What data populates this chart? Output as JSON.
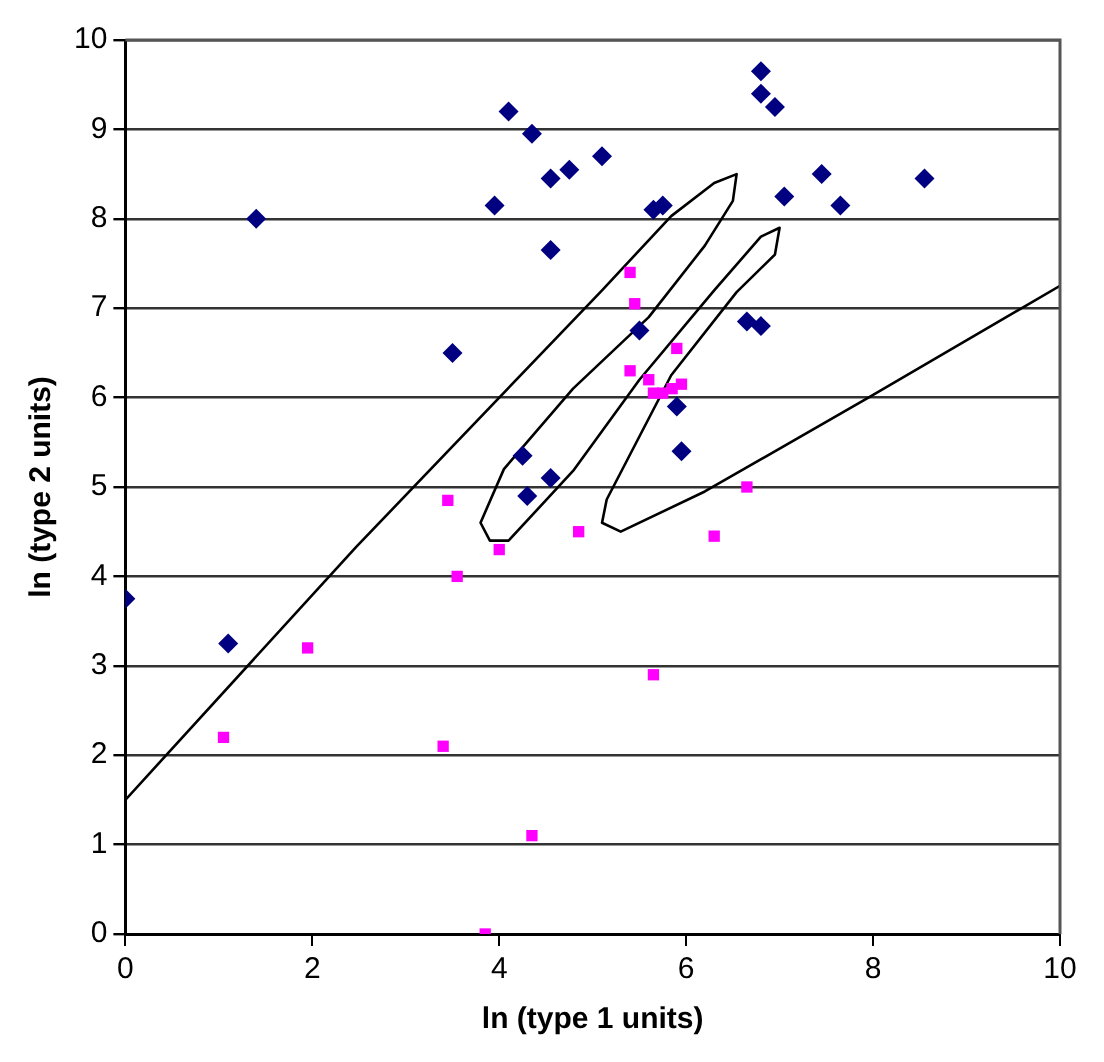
{
  "chart_data": {
    "type": "scatter",
    "xlabel": "ln (type 1 units)",
    "ylabel": "ln (type 2 units)",
    "xlim": [
      0,
      10
    ],
    "xticks": [
      0,
      2,
      4,
      6,
      8,
      10
    ],
    "ylim": [
      0,
      10
    ],
    "yticks": [
      0,
      1,
      2,
      3,
      4,
      5,
      6,
      7,
      8,
      9,
      10
    ],
    "grid": "y",
    "legend": false,
    "series": [
      {
        "type": "scatter",
        "color": "#000080",
        "marker": "diamond",
        "x": [
          0,
          1.1,
          1.4,
          3.5,
          3.95,
          4.1,
          4.35,
          4.55,
          4.55,
          4.75,
          5.1,
          5.65,
          5.75,
          4.25,
          4.3,
          4.55,
          5.5,
          5.9,
          5.95,
          6.65,
          6.8,
          6.8,
          6.8,
          6.95,
          7.05,
          7.45,
          7.65,
          8.55
        ],
        "values": [
          3.75,
          3.25,
          8.0,
          6.5,
          8.15,
          9.2,
          8.95,
          7.65,
          8.45,
          8.55,
          8.7,
          8.1,
          8.15,
          5.35,
          4.9,
          5.1,
          6.75,
          5.9,
          5.4,
          6.85,
          6.8,
          9.65,
          9.4,
          9.25,
          8.25,
          8.5,
          8.15,
          8.45
        ]
      },
      {
        "type": "scatter",
        "color": "#ff00ff",
        "marker": "square",
        "x": [
          1.05,
          1.95,
          3.4,
          3.45,
          3.55,
          3.85,
          4.0,
          4.35,
          4.85,
          5.4,
          5.45,
          5.4,
          5.6,
          5.65,
          5.75,
          5.9,
          5.85,
          5.95,
          5.65,
          6.3,
          6.65
        ],
        "values": [
          2.2,
          3.2,
          2.1,
          4.85,
          4.0,
          0,
          4.3,
          1.1,
          4.5,
          7.4,
          7.05,
          6.3,
          6.2,
          6.05,
          6.05,
          6.55,
          6.1,
          6.15,
          2.9,
          4.45,
          5.0
        ]
      },
      {
        "type": "line",
        "color": "#000000",
        "marker": "none",
        "line_style": "solid",
        "x": [
          0,
          2.47,
          5.1,
          5.84,
          6.3,
          6.54,
          6.5,
          6.2,
          5.6,
          4.79,
          4.05,
          3.8,
          3.9,
          4.1,
          4.79,
          5.5,
          6.3,
          6.8,
          7.0,
          6.95,
          6.54,
          5.84,
          5.15,
          5.1,
          5.3,
          6.2,
          7.95,
          10
        ],
        "values": [
          1.5,
          4.33,
          7.2,
          8.03,
          8.4,
          8.5,
          8.2,
          7.7,
          6.9,
          6.1,
          5.2,
          4.6,
          4.4,
          4.4,
          5.18,
          6.2,
          7.2,
          7.8,
          7.9,
          7.6,
          7.18,
          6.25,
          4.86,
          4.6,
          4.5,
          4.95,
          6.0,
          7.25
        ]
      }
    ]
  }
}
